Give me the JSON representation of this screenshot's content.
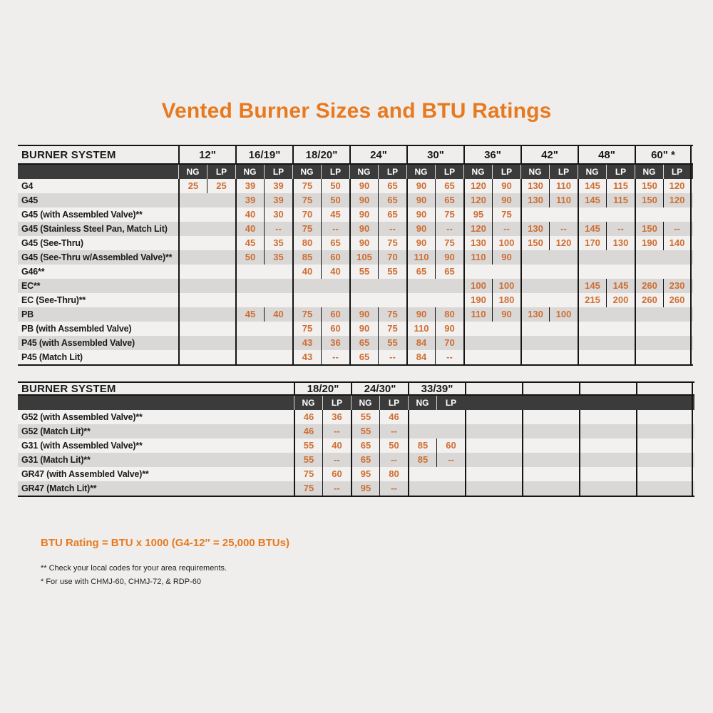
{
  "page": {
    "title": "Vented Burner Sizes and BTU Ratings"
  },
  "colors": {
    "accent_orange": "#e8791f",
    "value_orange": "#cf6e33",
    "bar_dark": "#3b3b3b",
    "stripe_gray": "#d9d8d6",
    "stripe_light": "#f2f1ef",
    "line_black": "#151515"
  },
  "sub_headers": [
    "NG",
    "LP"
  ],
  "tables": [
    {
      "name": "vented-burner-table-main",
      "header_label": "BURNER SYSTEM",
      "sizes": [
        "12\"",
        "16/19\"",
        "18/20\"",
        "24\"",
        "30\"",
        "36\"",
        "42\"",
        "48\"",
        "60\" *"
      ],
      "trailing_empty_groups": 0,
      "rows": [
        {
          "label": "G4",
          "values": [
            "25",
            "25",
            "39",
            "39",
            "75",
            "50",
            "90",
            "65",
            "90",
            "65",
            "120",
            "90",
            "130",
            "110",
            "145",
            "115",
            "150",
            "120"
          ]
        },
        {
          "label": "G45",
          "values": [
            "",
            "",
            "39",
            "39",
            "75",
            "50",
            "90",
            "65",
            "90",
            "65",
            "120",
            "90",
            "130",
            "110",
            "145",
            "115",
            "150",
            "120"
          ]
        },
        {
          "label": "G45 (with Assembled Valve)**",
          "values": [
            "",
            "",
            "40",
            "30",
            "70",
            "45",
            "90",
            "65",
            "90",
            "75",
            "95",
            "75",
            "",
            "",
            "",
            "",
            "",
            ""
          ]
        },
        {
          "label": "G45 (Stainless Steel Pan, Match Lit)",
          "values": [
            "",
            "",
            "40",
            "--",
            "75",
            "--",
            "90",
            "--",
            "90",
            "--",
            "120",
            "--",
            "130",
            "--",
            "145",
            "--",
            "150",
            "--"
          ]
        },
        {
          "label": "G45 (See-Thru)",
          "values": [
            "",
            "",
            "45",
            "35",
            "80",
            "65",
            "90",
            "75",
            "90",
            "75",
            "130",
            "100",
            "150",
            "120",
            "170",
            "130",
            "190",
            "140"
          ]
        },
        {
          "label": "G45 (See-Thru w/Assembled Valve)**",
          "values": [
            "",
            "",
            "50",
            "35",
            "85",
            "60",
            "105",
            "70",
            "110",
            "90",
            "110",
            "90",
            "",
            "",
            "",
            "",
            "",
            ""
          ]
        },
        {
          "label": "G46**",
          "values": [
            "",
            "",
            "",
            "",
            "40",
            "40",
            "55",
            "55",
            "65",
            "65",
            "",
            "",
            "",
            "",
            "",
            "",
            "",
            ""
          ]
        },
        {
          "label": "EC**",
          "values": [
            "",
            "",
            "",
            "",
            "",
            "",
            "",
            "",
            "",
            "",
            "100",
            "100",
            "",
            "",
            "145",
            "145",
            "260",
            "230"
          ]
        },
        {
          "label": "EC (See-Thru)**",
          "values": [
            "",
            "",
            "",
            "",
            "",
            "",
            "",
            "",
            "",
            "",
            "190",
            "180",
            "",
            "",
            "215",
            "200",
            "260",
            "260"
          ]
        },
        {
          "label": "PB",
          "values": [
            "",
            "",
            "45",
            "40",
            "75",
            "60",
            "90",
            "75",
            "90",
            "80",
            "110",
            "90",
            "130",
            "100",
            "",
            "",
            "",
            ""
          ]
        },
        {
          "label": "PB (with Assembled Valve)",
          "values": [
            "",
            "",
            "",
            "",
            "75",
            "60",
            "90",
            "75",
            "110",
            "90",
            "",
            "",
            "",
            "",
            "",
            "",
            "",
            ""
          ]
        },
        {
          "label": "P45 (with Assembled Valve)",
          "values": [
            "",
            "",
            "",
            "",
            "43",
            "36",
            "65",
            "55",
            "84",
            "70",
            "",
            "",
            "",
            "",
            "",
            "",
            "",
            ""
          ]
        },
        {
          "label": "P45 (Match Lit)",
          "values": [
            "",
            "",
            "",
            "",
            "43",
            "--",
            "65",
            "--",
            "84",
            "--",
            "",
            "",
            "",
            "",
            "",
            "",
            "",
            ""
          ]
        }
      ]
    },
    {
      "name": "vented-burner-table-secondary",
      "header_label": "BURNER SYSTEM",
      "sizes": [
        "18/20\"",
        "24/30\"",
        "33/39\""
      ],
      "trailing_empty_groups": 4,
      "rows": [
        {
          "label": "G52 (with Assembled Valve)**",
          "values": [
            "46",
            "36",
            "55",
            "46",
            "",
            ""
          ]
        },
        {
          "label": "G52 (Match Lit)**",
          "values": [
            "46",
            "--",
            "55",
            "--",
            "",
            ""
          ]
        },
        {
          "label": "G31 (with Assembled Valve)**",
          "values": [
            "55",
            "40",
            "65",
            "50",
            "85",
            "60"
          ]
        },
        {
          "label": "G31 (Match Lit)**",
          "values": [
            "55",
            "--",
            "65",
            "--",
            "85",
            "--"
          ]
        },
        {
          "label": "GR47 (with Assembled Valve)**",
          "values": [
            "75",
            "60",
            "95",
            "80",
            "",
            ""
          ]
        },
        {
          "label": "GR47 (Match Lit)**",
          "values": [
            "75",
            "--",
            "95",
            "--",
            "",
            ""
          ]
        }
      ]
    }
  ],
  "footer": {
    "rating_note": "BTU Rating = BTU x 1000 (G4-12″ = 25,000 BTUs)",
    "footnote_codes": "** Check your local codes for your area requirements.",
    "footnote_use": "* For use with CHMJ-60, CHMJ-72, & RDP-60"
  }
}
